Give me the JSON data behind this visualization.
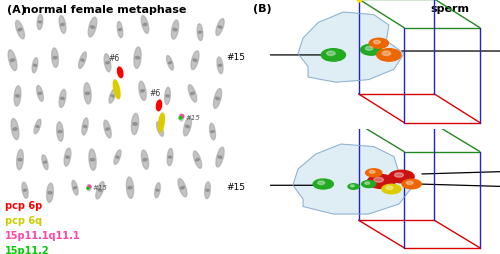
{
  "panel_A_title": "normal female metaphase",
  "panel_B_title": "sperm",
  "panel_A_label": "(A)",
  "panel_B_label": "(B)",
  "legend_items": [
    {
      "text": "pcp 6p",
      "color": "#ff0000"
    },
    {
      "text": "pcp 6q",
      "color": "#cccc00"
    },
    {
      "text": "15p11.1q11.1",
      "color": "#ff44aa"
    },
    {
      "text": "15p11.2",
      "color": "#00cc00"
    }
  ],
  "bg_color": "#ffffff",
  "chr_gray": "#888888",
  "box_red": "#dd0000",
  "box_green": "#228822",
  "box_blue": "#2222cc",
  "blob_color": "#b8d8e8",
  "sphere_green": "#22aa22",
  "sphere_orange": "#ee6600",
  "sphere_red": "#cc1111",
  "sphere_yellow": "#ddcc00",
  "label_color": "#000000",
  "chr_positions": [
    [
      0.08,
      0.88,
      0.013,
      0.038,
      20
    ],
    [
      0.16,
      0.91,
      0.011,
      0.03,
      -5
    ],
    [
      0.25,
      0.9,
      0.012,
      0.035,
      10
    ],
    [
      0.37,
      0.89,
      0.014,
      0.04,
      -15
    ],
    [
      0.48,
      0.88,
      0.01,
      0.032,
      8
    ],
    [
      0.58,
      0.9,
      0.012,
      0.036,
      15
    ],
    [
      0.7,
      0.88,
      0.013,
      0.038,
      -10
    ],
    [
      0.8,
      0.87,
      0.011,
      0.033,
      5
    ],
    [
      0.88,
      0.89,
      0.012,
      0.035,
      -20
    ],
    [
      0.05,
      0.76,
      0.014,
      0.042,
      15
    ],
    [
      0.14,
      0.74,
      0.01,
      0.03,
      -10
    ],
    [
      0.22,
      0.77,
      0.013,
      0.038,
      5
    ],
    [
      0.33,
      0.76,
      0.011,
      0.034,
      -20
    ],
    [
      0.43,
      0.75,
      0.012,
      0.036,
      10
    ],
    [
      0.55,
      0.77,
      0.014,
      0.042,
      -5
    ],
    [
      0.68,
      0.75,
      0.01,
      0.03,
      20
    ],
    [
      0.78,
      0.76,
      0.013,
      0.038,
      -15
    ],
    [
      0.88,
      0.74,
      0.011,
      0.033,
      8
    ],
    [
      0.07,
      0.62,
      0.013,
      0.04,
      -5
    ],
    [
      0.16,
      0.63,
      0.011,
      0.032,
      15
    ],
    [
      0.25,
      0.61,
      0.012,
      0.036,
      -10
    ],
    [
      0.35,
      0.63,
      0.014,
      0.042,
      5
    ],
    [
      0.45,
      0.62,
      0.01,
      0.03,
      -20
    ],
    [
      0.57,
      0.64,
      0.013,
      0.038,
      10
    ],
    [
      0.67,
      0.62,
      0.011,
      0.034,
      -5
    ],
    [
      0.77,
      0.63,
      0.012,
      0.036,
      20
    ],
    [
      0.87,
      0.61,
      0.013,
      0.04,
      -15
    ],
    [
      0.06,
      0.49,
      0.014,
      0.042,
      10
    ],
    [
      0.15,
      0.5,
      0.01,
      0.03,
      -20
    ],
    [
      0.24,
      0.48,
      0.013,
      0.038,
      5
    ],
    [
      0.34,
      0.5,
      0.011,
      0.034,
      -10
    ],
    [
      0.43,
      0.49,
      0.012,
      0.036,
      15
    ],
    [
      0.54,
      0.51,
      0.014,
      0.042,
      -5
    ],
    [
      0.64,
      0.49,
      0.01,
      0.03,
      20
    ],
    [
      0.75,
      0.5,
      0.013,
      0.038,
      -15
    ],
    [
      0.85,
      0.48,
      0.011,
      0.033,
      8
    ],
    [
      0.08,
      0.37,
      0.013,
      0.04,
      -5
    ],
    [
      0.18,
      0.36,
      0.01,
      0.03,
      15
    ],
    [
      0.27,
      0.38,
      0.012,
      0.036,
      -10
    ],
    [
      0.37,
      0.37,
      0.014,
      0.042,
      5
    ],
    [
      0.47,
      0.38,
      0.01,
      0.03,
      -20
    ],
    [
      0.58,
      0.37,
      0.013,
      0.038,
      10
    ],
    [
      0.68,
      0.38,
      0.011,
      0.034,
      -5
    ],
    [
      0.79,
      0.37,
      0.012,
      0.036,
      20
    ],
    [
      0.88,
      0.38,
      0.013,
      0.04,
      -15
    ],
    [
      0.1,
      0.25,
      0.011,
      0.032,
      10
    ],
    [
      0.2,
      0.24,
      0.013,
      0.038,
      -5
    ],
    [
      0.3,
      0.26,
      0.01,
      0.03,
      15
    ],
    [
      0.4,
      0.25,
      0.012,
      0.036,
      -20
    ],
    [
      0.52,
      0.26,
      0.014,
      0.042,
      5
    ],
    [
      0.63,
      0.25,
      0.01,
      0.03,
      -10
    ],
    [
      0.73,
      0.26,
      0.013,
      0.038,
      20
    ],
    [
      0.83,
      0.25,
      0.011,
      0.033,
      -5
    ]
  ]
}
